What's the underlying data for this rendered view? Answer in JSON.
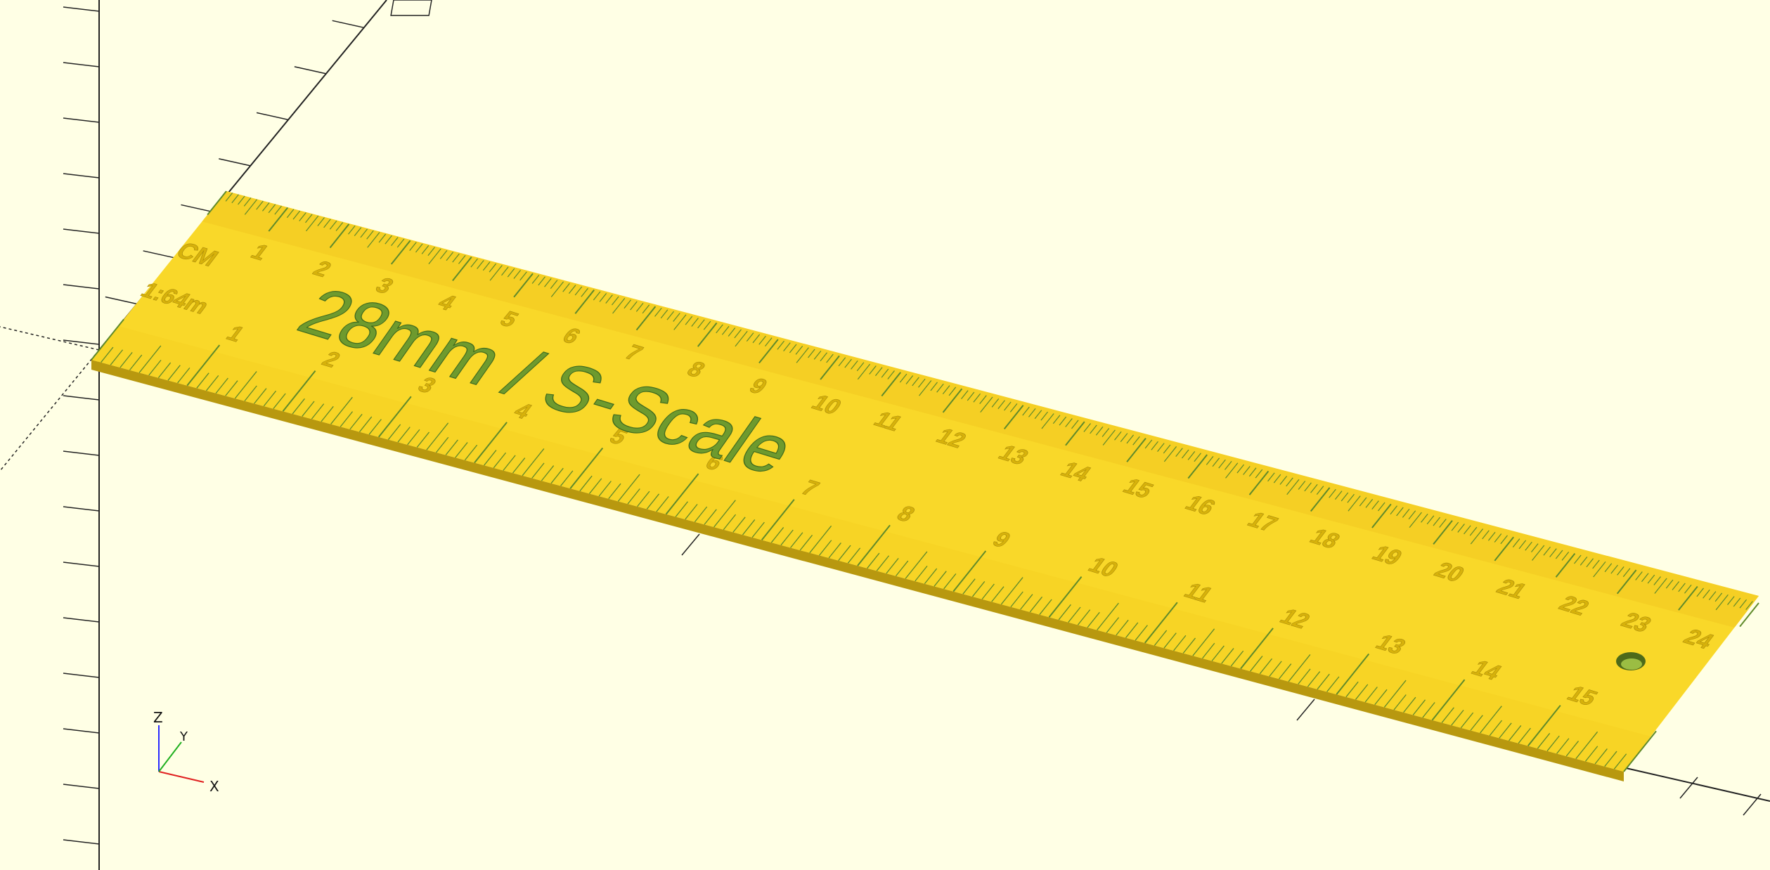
{
  "app": {
    "name": "OpenSCAD",
    "view": "3D viewport"
  },
  "model": {
    "title": "28mm / S-Scale",
    "cm_label": "CM",
    "scale_label": "1:64m",
    "top_scale_numbers": [
      "1",
      "2",
      "3",
      "4",
      "5",
      "6",
      "7",
      "8",
      "9",
      "10",
      "11",
      "12",
      "13",
      "14",
      "15",
      "16",
      "17",
      "18",
      "19",
      "20",
      "21",
      "22",
      "23",
      "24"
    ],
    "bottom_scale_numbers": [
      "1",
      "2",
      "3",
      "4",
      "5",
      "6",
      "7",
      "8",
      "9",
      "10",
      "11",
      "12",
      "13",
      "14",
      "15"
    ],
    "colors": {
      "face": "#f9d829",
      "edge": "#b8980f",
      "tick": "#5f8a2a",
      "text": "#5f8a2a",
      "background": "#ffffe5"
    },
    "features": [
      "hanging-hole"
    ]
  },
  "axes_indicator": {
    "x": "X",
    "y": "Y",
    "z": "Z"
  }
}
